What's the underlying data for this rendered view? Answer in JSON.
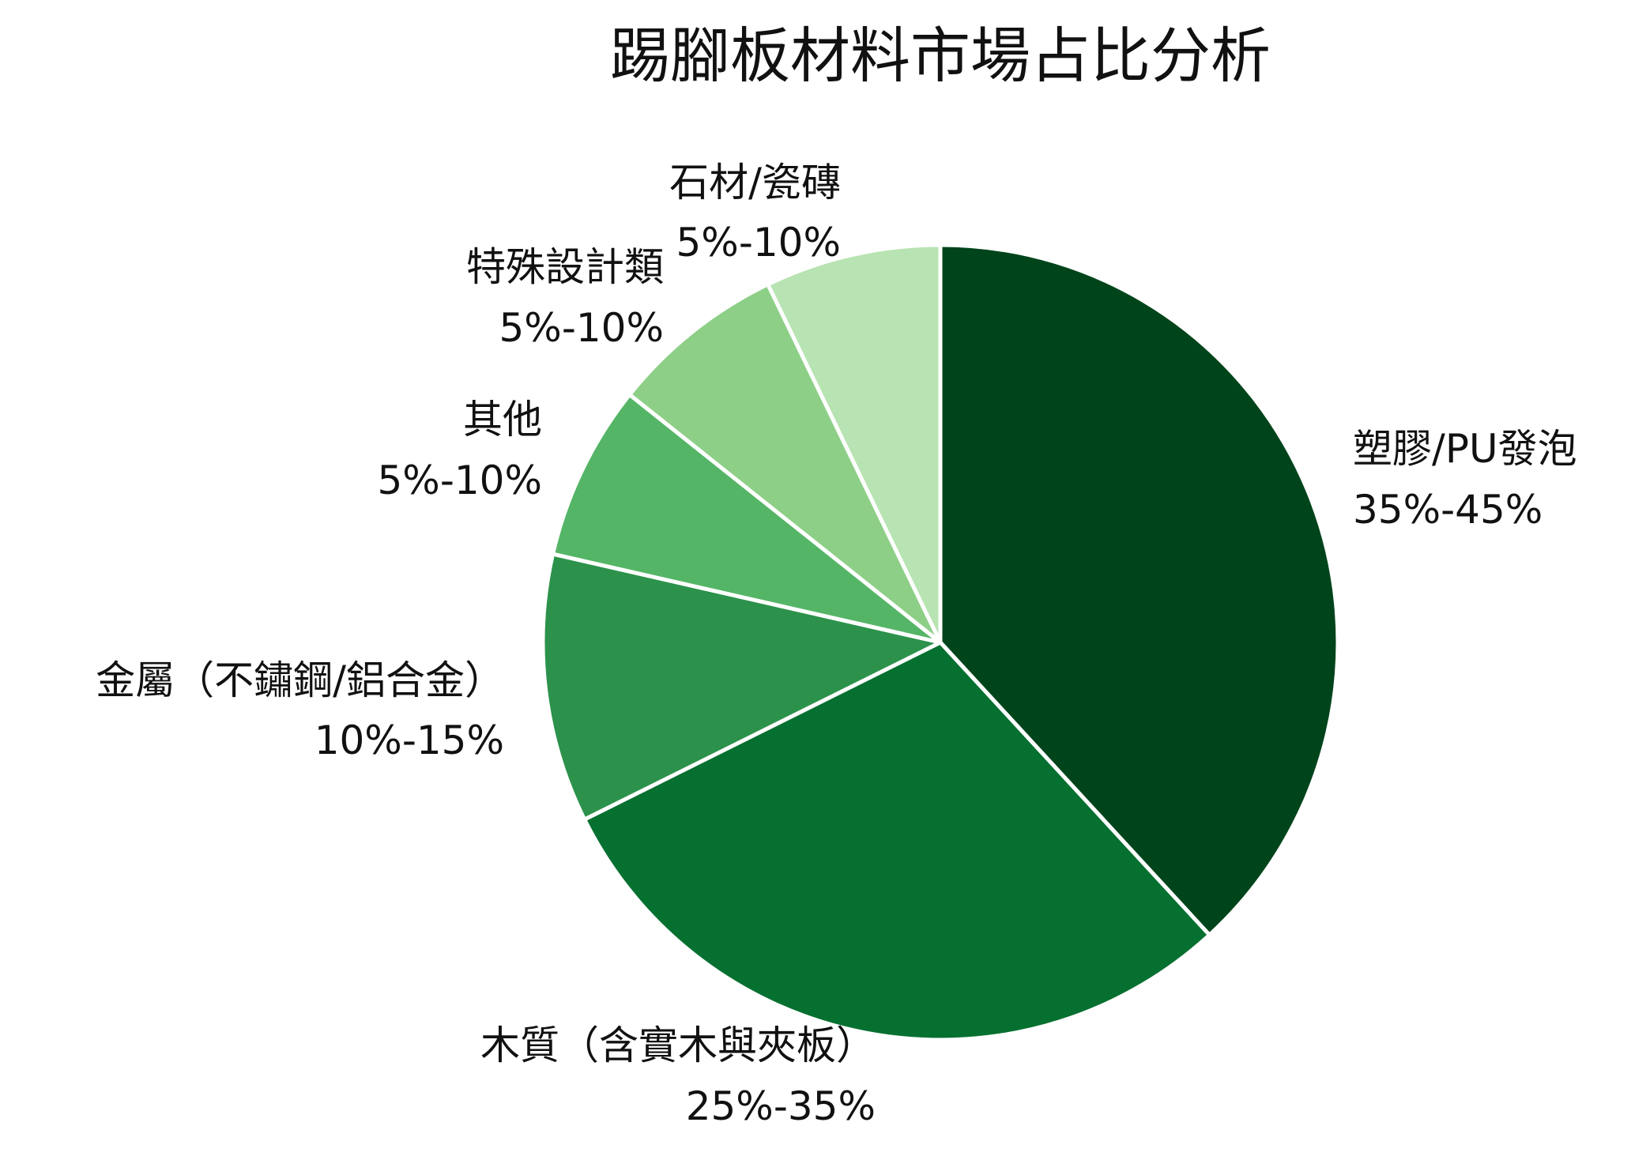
{
  "chart_data": {
    "type": "pie",
    "title": "踢腳板材料市場占比分析",
    "start_angle_deg": 0,
    "direction": "clockwise",
    "slice_border_color": "#ffffff",
    "slices": [
      {
        "label": "塑膠/PU發泡",
        "range": "35%-45%",
        "value": 37.4,
        "color": "#00441b"
      },
      {
        "label": "木質（含實木與夾板）",
        "range": "25%-35%",
        "value": 28.9,
        "color": "#067030"
      },
      {
        "label": "金屬（不鏽鋼/鋁合金）",
        "range": "10%-15%",
        "value": 10.7,
        "color": "#2c924b"
      },
      {
        "label": "其他",
        "range": "5%-10%",
        "value": 7.0,
        "color": "#55b567"
      },
      {
        "label": "特殊設計類",
        "range": "5%-10%",
        "value": 7.0,
        "color": "#8ecf88"
      },
      {
        "label": "石材/瓷磚",
        "range": "5%-10%",
        "value": 7.0,
        "color": "#b8e3b2"
      }
    ]
  }
}
